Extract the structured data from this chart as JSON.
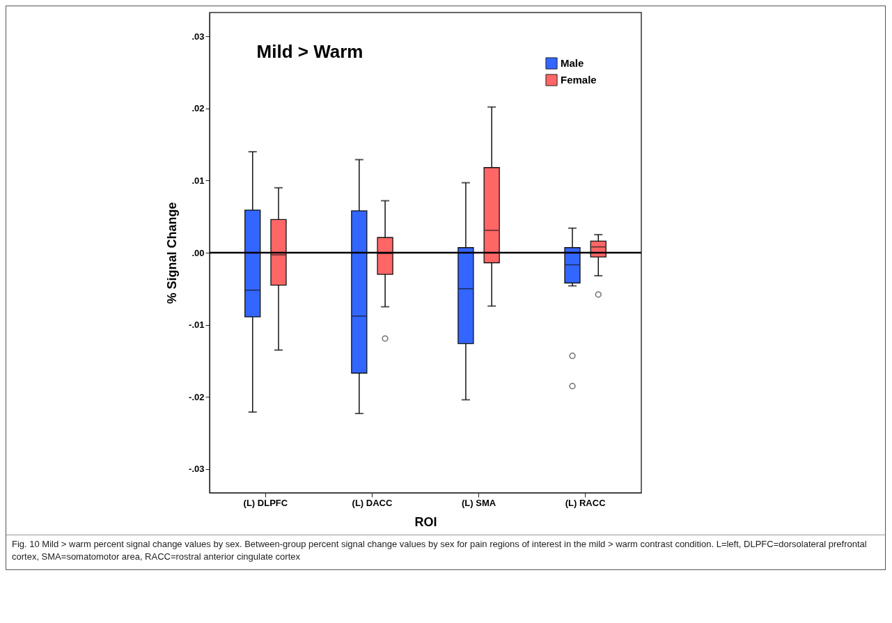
{
  "chart_data": {
    "type": "box",
    "title": "Mild > Warm",
    "xlabel": "ROI",
    "ylabel": "% Signal Change",
    "categories": [
      "(L) DLPFC",
      "(L) DACC",
      "(L) SMA",
      "(L) RACC"
    ],
    "series": [
      {
        "name": "Male",
        "color": "#3366ff",
        "boxes": [
          {
            "low": -0.0221,
            "q1": -0.0089,
            "median": -0.0052,
            "q3": 0.0059,
            "high": 0.014
          },
          {
            "low": -0.0223,
            "q1": -0.0167,
            "median": -0.0088,
            "q3": 0.0058,
            "high": 0.0129
          },
          {
            "low": -0.0204,
            "q1": -0.0126,
            "median": -0.005,
            "q3": 0.0007,
            "high": 0.0097
          },
          {
            "low": -0.0046,
            "q1": -0.0042,
            "median": -0.0017,
            "q3": 0.0007,
            "high": 0.0034,
            "outliers": [
              -0.0143,
              -0.0185
            ]
          }
        ]
      },
      {
        "name": "Female",
        "color": "#ff6666",
        "boxes": [
          {
            "low": -0.0135,
            "q1": -0.0045,
            "median": -0.0003,
            "q3": 0.0046,
            "high": 0.009
          },
          {
            "low": -0.0075,
            "q1": -0.003,
            "median": -0.0001,
            "q3": 0.0021,
            "high": 0.0072,
            "outliers": [
              -0.0119
            ]
          },
          {
            "low": -0.0074,
            "q1": -0.0014,
            "median": 0.0031,
            "q3": 0.0118,
            "high": 0.0202
          },
          {
            "low": -0.0032,
            "q1": -0.0006,
            "median": 0.0008,
            "q3": 0.0016,
            "high": 0.0025,
            "outliers": [
              -0.0058
            ]
          }
        ]
      }
    ],
    "ylim": [
      -0.0333,
      0.0333
    ],
    "yticks": [
      {
        "value": -0.03,
        "label": "-.03"
      },
      {
        "value": -0.02,
        "label": "-.02"
      },
      {
        "value": -0.01,
        "label": "-.01"
      },
      {
        "value": 0,
        "label": ".00"
      },
      {
        "value": 0.01,
        "label": ".01"
      },
      {
        "value": 0.02,
        "label": ".02"
      },
      {
        "value": 0.03,
        "label": ".03"
      }
    ],
    "ref_lines": [
      {
        "axis": "y",
        "value": 0
      }
    ],
    "grid": false,
    "legend": "top right",
    "annotations": [
      "Fig. 10 Mild > warm percent signal change values by sex. Between-group percent signal change values by sex for pain regions of interest in the mild > warm contrast condition. L=left, DLPFC=dorsolateral prefrontal cortex, SMA=somatomotor area, RACC=rostral anterior cingulate cortex"
    ]
  }
}
